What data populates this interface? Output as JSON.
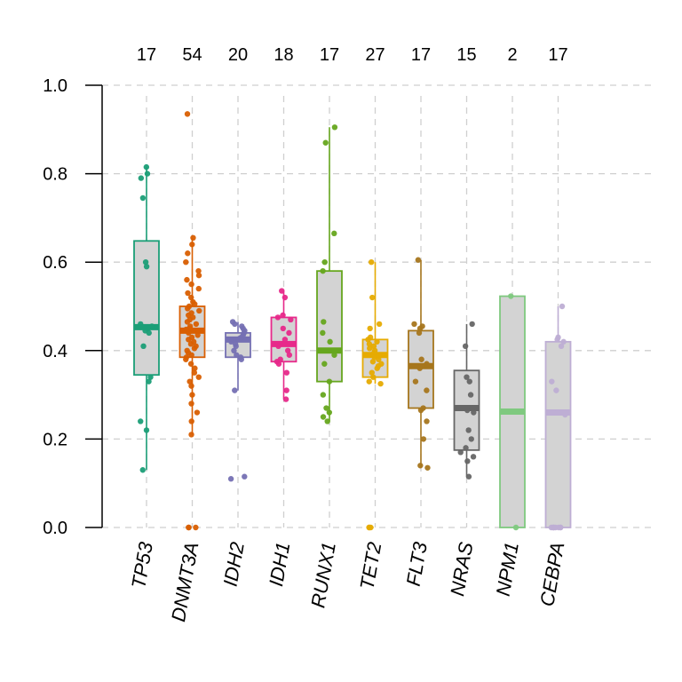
{
  "chart_data": {
    "type": "boxplot",
    "title": "",
    "xlabel": "",
    "ylabel": "",
    "ylim": [
      0,
      1
    ],
    "yticks": [
      "0.0",
      "0.2",
      "0.4",
      "0.6",
      "0.8",
      "1.0"
    ],
    "grid": true,
    "categories": [
      {
        "name": "TP53",
        "count": "17",
        "color": "#1B9E77",
        "q1": 0.345,
        "median": 0.453,
        "q3": 0.648,
        "whisker_low": 0.13,
        "whisker_high": 0.815,
        "points": [
          0.815,
          0.8,
          0.79,
          0.745,
          0.6,
          0.59,
          0.46,
          0.455,
          0.45,
          0.445,
          0.41,
          0.34,
          0.33,
          0.24,
          0.22,
          0.13,
          0.44
        ]
      },
      {
        "name": "DNMT3A",
        "count": "54",
        "color": "#D95F02",
        "q1": 0.385,
        "median": 0.445,
        "q3": 0.5,
        "whisker_low": 0.21,
        "whisker_high": 0.655,
        "points": [
          0.935,
          0.655,
          0.64,
          0.62,
          0.6,
          0.58,
          0.57,
          0.56,
          0.55,
          0.54,
          0.53,
          0.52,
          0.51,
          0.505,
          0.5,
          0.495,
          0.49,
          0.485,
          0.48,
          0.475,
          0.47,
          0.465,
          0.46,
          0.455,
          0.45,
          0.448,
          0.445,
          0.44,
          0.435,
          0.43,
          0.425,
          0.42,
          0.415,
          0.41,
          0.405,
          0.4,
          0.395,
          0.39,
          0.385,
          0.38,
          0.37,
          0.36,
          0.35,
          0.34,
          0.33,
          0.32,
          0.3,
          0.28,
          0.26,
          0.24,
          0.21,
          0.0,
          0.0,
          0.0
        ]
      },
      {
        "name": "IDH2",
        "count": "20",
        "color": "#7570B3",
        "q1": 0.385,
        "median": 0.425,
        "q3": 0.44,
        "whisker_low": 0.31,
        "whisker_high": 0.465,
        "points": [
          0.465,
          0.46,
          0.455,
          0.45,
          0.445,
          0.44,
          0.435,
          0.43,
          0.428,
          0.425,
          0.42,
          0.415,
          0.41,
          0.4,
          0.39,
          0.385,
          0.38,
          0.31,
          0.115,
          0.11
        ]
      },
      {
        "name": "IDH1",
        "count": "18",
        "color": "#E7298A",
        "q1": 0.375,
        "median": 0.415,
        "q3": 0.475,
        "whisker_low": 0.29,
        "whisker_high": 0.535,
        "points": [
          0.535,
          0.52,
          0.48,
          0.475,
          0.47,
          0.45,
          0.44,
          0.425,
          0.415,
          0.41,
          0.4,
          0.39,
          0.38,
          0.375,
          0.37,
          0.35,
          0.31,
          0.29
        ]
      },
      {
        "name": "RUNX1",
        "count": "17",
        "color": "#66A61E",
        "q1": 0.33,
        "median": 0.4,
        "q3": 0.58,
        "whisker_low": 0.24,
        "whisker_high": 0.905,
        "points": [
          0.905,
          0.87,
          0.665,
          0.6,
          0.58,
          0.465,
          0.44,
          0.42,
          0.4,
          0.39,
          0.37,
          0.33,
          0.3,
          0.27,
          0.26,
          0.25,
          0.24
        ]
      },
      {
        "name": "TET2",
        "count": "27",
        "color": "#E6AB02",
        "q1": 0.34,
        "median": 0.39,
        "q3": 0.425,
        "whisker_low": 0.325,
        "whisker_high": 0.6,
        "points": [
          0.6,
          0.52,
          0.46,
          0.45,
          0.43,
          0.425,
          0.42,
          0.415,
          0.41,
          0.405,
          0.4,
          0.395,
          0.39,
          0.388,
          0.385,
          0.38,
          0.375,
          0.37,
          0.365,
          0.36,
          0.35,
          0.34,
          0.33,
          0.325,
          0.0,
          0.0,
          0.0
        ]
      },
      {
        "name": "FLT3",
        "count": "17",
        "color": "#A6761D",
        "q1": 0.27,
        "median": 0.365,
        "q3": 0.445,
        "whisker_low": 0.135,
        "whisker_high": 0.605,
        "points": [
          0.605,
          0.46,
          0.455,
          0.45,
          0.44,
          0.38,
          0.37,
          0.365,
          0.36,
          0.33,
          0.31,
          0.27,
          0.265,
          0.24,
          0.2,
          0.14,
          0.135
        ]
      },
      {
        "name": "NRAS",
        "count": "15",
        "color": "#666666",
        "q1": 0.175,
        "median": 0.27,
        "q3": 0.355,
        "whisker_low": 0.115,
        "whisker_high": 0.46,
        "points": [
          0.46,
          0.41,
          0.34,
          0.33,
          0.3,
          0.27,
          0.265,
          0.26,
          0.22,
          0.2,
          0.18,
          0.17,
          0.16,
          0.15,
          0.115
        ]
      },
      {
        "name": "NPM1",
        "count": "2",
        "color": "#7FC97F",
        "q1": 0.0,
        "median": 0.262,
        "q3": 0.523,
        "whisker_low": 0.0,
        "whisker_high": 0.523,
        "points": [
          0.523,
          0.0
        ]
      },
      {
        "name": "CEBPA",
        "count": "17",
        "color": "#BEAED4",
        "q1": 0.0,
        "median": 0.26,
        "q3": 0.42,
        "whisker_low": 0.0,
        "whisker_high": 0.5,
        "points": [
          0.5,
          0.43,
          0.425,
          0.42,
          0.41,
          0.33,
          0.31,
          0.26,
          0.255,
          0.0,
          0.0,
          0.0,
          0.0,
          0.0,
          0.0,
          0.0,
          0.0
        ]
      }
    ]
  }
}
